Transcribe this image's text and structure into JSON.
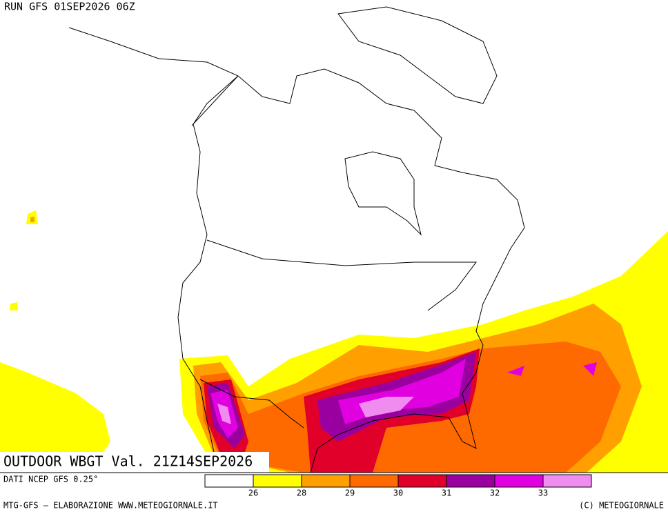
{
  "header": {
    "run": "RUN GFS 01SEP2026 06Z"
  },
  "title": "OUTDOOR WBGT Val. 21Z14SEP2026",
  "source": "DATI NCEP GFS 0.25°",
  "legend": {
    "colors": [
      "#ffffff",
      "#ffff00",
      "#ffa000",
      "#ff6a00",
      "#e0002a",
      "#9a00a0",
      "#e000e0",
      "#f08cf0"
    ],
    "labels": [
      26,
      28,
      29,
      30,
      31,
      32,
      33
    ]
  },
  "footer": {
    "left": "MTG-GFS — ELABORAZIONE WWW.METEOGIORNALE.IT",
    "right": "(C) METEOGIORNALE"
  }
}
